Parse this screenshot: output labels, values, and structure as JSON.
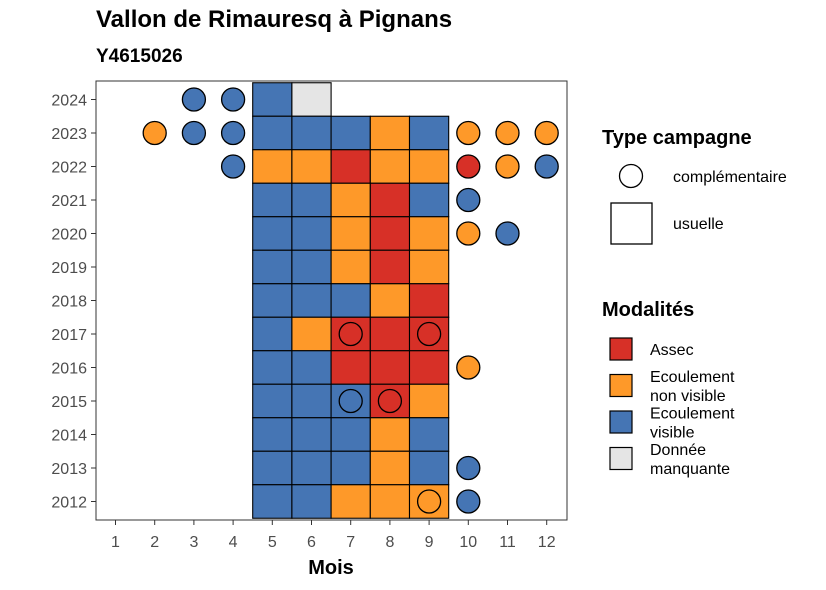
{
  "chart_data": {
    "type": "heatmap",
    "title": "Vallon de Rimauresq à Pignans",
    "subtitle": "Y4615026",
    "xlabel": "Mois",
    "ylabel": "",
    "x_ticks": [
      "1",
      "2",
      "3",
      "4",
      "5",
      "6",
      "7",
      "8",
      "9",
      "10",
      "11",
      "12"
    ],
    "y_ticks": [
      "2012",
      "2013",
      "2014",
      "2015",
      "2016",
      "2017",
      "2018",
      "2019",
      "2020",
      "2021",
      "2022",
      "2023",
      "2024"
    ],
    "colors": {
      "Assec": "#d73027",
      "Ecoulement non visible": "#fe9929",
      "Ecoulement visible": "#4575b4",
      "Donnée manquante": "#e5e5e5"
    },
    "legend_shape": {
      "title": "Type campagne",
      "items": [
        "complémentaire",
        "usuelle"
      ]
    },
    "legend_fill": {
      "title": "Modalités",
      "items": [
        {
          "key": "Assec",
          "lines": [
            "Assec"
          ]
        },
        {
          "key": "Ecoulement non visible",
          "lines": [
            "Ecoulement",
            "non visible"
          ]
        },
        {
          "key": "Ecoulement visible",
          "lines": [
            "Ecoulement",
            "visible"
          ]
        },
        {
          "key": "Donnée manquante",
          "lines": [
            "Donnée",
            "manquante"
          ]
        }
      ]
    },
    "usuelle": [
      {
        "year": 2024,
        "m": 5,
        "v": "Ecoulement visible"
      },
      {
        "year": 2024,
        "m": 6,
        "v": "Donnée manquante"
      },
      {
        "year": 2023,
        "m": 5,
        "v": "Ecoulement visible"
      },
      {
        "year": 2023,
        "m": 6,
        "v": "Ecoulement visible"
      },
      {
        "year": 2023,
        "m": 7,
        "v": "Ecoulement visible"
      },
      {
        "year": 2023,
        "m": 8,
        "v": "Ecoulement non visible"
      },
      {
        "year": 2023,
        "m": 9,
        "v": "Ecoulement visible"
      },
      {
        "year": 2022,
        "m": 5,
        "v": "Ecoulement non visible"
      },
      {
        "year": 2022,
        "m": 6,
        "v": "Ecoulement non visible"
      },
      {
        "year": 2022,
        "m": 7,
        "v": "Assec"
      },
      {
        "year": 2022,
        "m": 8,
        "v": "Ecoulement non visible"
      },
      {
        "year": 2022,
        "m": 9,
        "v": "Ecoulement non visible"
      },
      {
        "year": 2021,
        "m": 5,
        "v": "Ecoulement visible"
      },
      {
        "year": 2021,
        "m": 6,
        "v": "Ecoulement visible"
      },
      {
        "year": 2021,
        "m": 7,
        "v": "Ecoulement non visible"
      },
      {
        "year": 2021,
        "m": 8,
        "v": "Assec"
      },
      {
        "year": 2021,
        "m": 9,
        "v": "Ecoulement visible"
      },
      {
        "year": 2020,
        "m": 5,
        "v": "Ecoulement visible"
      },
      {
        "year": 2020,
        "m": 6,
        "v": "Ecoulement visible"
      },
      {
        "year": 2020,
        "m": 7,
        "v": "Ecoulement non visible"
      },
      {
        "year": 2020,
        "m": 8,
        "v": "Assec"
      },
      {
        "year": 2020,
        "m": 9,
        "v": "Ecoulement non visible"
      },
      {
        "year": 2019,
        "m": 5,
        "v": "Ecoulement visible"
      },
      {
        "year": 2019,
        "m": 6,
        "v": "Ecoulement visible"
      },
      {
        "year": 2019,
        "m": 7,
        "v": "Ecoulement non visible"
      },
      {
        "year": 2019,
        "m": 8,
        "v": "Assec"
      },
      {
        "year": 2019,
        "m": 9,
        "v": "Ecoulement non visible"
      },
      {
        "year": 2018,
        "m": 5,
        "v": "Ecoulement visible"
      },
      {
        "year": 2018,
        "m": 6,
        "v": "Ecoulement visible"
      },
      {
        "year": 2018,
        "m": 7,
        "v": "Ecoulement visible"
      },
      {
        "year": 2018,
        "m": 8,
        "v": "Ecoulement non visible"
      },
      {
        "year": 2018,
        "m": 9,
        "v": "Assec"
      },
      {
        "year": 2017,
        "m": 5,
        "v": "Ecoulement visible"
      },
      {
        "year": 2017,
        "m": 6,
        "v": "Ecoulement non visible"
      },
      {
        "year": 2017,
        "m": 7,
        "v": "Assec"
      },
      {
        "year": 2017,
        "m": 8,
        "v": "Assec"
      },
      {
        "year": 2017,
        "m": 9,
        "v": "Assec"
      },
      {
        "year": 2016,
        "m": 5,
        "v": "Ecoulement visible"
      },
      {
        "year": 2016,
        "m": 6,
        "v": "Ecoulement visible"
      },
      {
        "year": 2016,
        "m": 7,
        "v": "Assec"
      },
      {
        "year": 2016,
        "m": 8,
        "v": "Assec"
      },
      {
        "year": 2016,
        "m": 9,
        "v": "Assec"
      },
      {
        "year": 2015,
        "m": 5,
        "v": "Ecoulement visible"
      },
      {
        "year": 2015,
        "m": 6,
        "v": "Ecoulement visible"
      },
      {
        "year": 2015,
        "m": 7,
        "v": "Ecoulement visible"
      },
      {
        "year": 2015,
        "m": 8,
        "v": "Assec"
      },
      {
        "year": 2015,
        "m": 9,
        "v": "Ecoulement non visible"
      },
      {
        "year": 2014,
        "m": 5,
        "v": "Ecoulement visible"
      },
      {
        "year": 2014,
        "m": 6,
        "v": "Ecoulement visible"
      },
      {
        "year": 2014,
        "m": 7,
        "v": "Ecoulement visible"
      },
      {
        "year": 2014,
        "m": 8,
        "v": "Ecoulement non visible"
      },
      {
        "year": 2014,
        "m": 9,
        "v": "Ecoulement visible"
      },
      {
        "year": 2013,
        "m": 5,
        "v": "Ecoulement visible"
      },
      {
        "year": 2013,
        "m": 6,
        "v": "Ecoulement visible"
      },
      {
        "year": 2013,
        "m": 7,
        "v": "Ecoulement visible"
      },
      {
        "year": 2013,
        "m": 8,
        "v": "Ecoulement non visible"
      },
      {
        "year": 2013,
        "m": 9,
        "v": "Ecoulement visible"
      },
      {
        "year": 2012,
        "m": 5,
        "v": "Ecoulement visible"
      },
      {
        "year": 2012,
        "m": 6,
        "v": "Ecoulement visible"
      },
      {
        "year": 2012,
        "m": 7,
        "v": "Ecoulement non visible"
      },
      {
        "year": 2012,
        "m": 8,
        "v": "Ecoulement non visible"
      },
      {
        "year": 2012,
        "m": 9,
        "v": "Ecoulement non visible"
      }
    ],
    "complementaire": [
      {
        "year": 2024,
        "m": 3,
        "v": "Ecoulement visible"
      },
      {
        "year": 2024,
        "m": 4,
        "v": "Ecoulement visible"
      },
      {
        "year": 2023,
        "m": 2,
        "v": "Ecoulement non visible"
      },
      {
        "year": 2023,
        "m": 3,
        "v": "Ecoulement visible"
      },
      {
        "year": 2023,
        "m": 4,
        "v": "Ecoulement visible"
      },
      {
        "year": 2023,
        "m": 10,
        "v": "Ecoulement non visible"
      },
      {
        "year": 2023,
        "m": 11,
        "v": "Ecoulement non visible"
      },
      {
        "year": 2023,
        "m": 12,
        "v": "Ecoulement non visible"
      },
      {
        "year": 2022,
        "m": 4,
        "v": "Ecoulement visible"
      },
      {
        "year": 2022,
        "m": 10,
        "v": "Assec"
      },
      {
        "year": 2022,
        "m": 11,
        "v": "Ecoulement non visible"
      },
      {
        "year": 2022,
        "m": 12,
        "v": "Ecoulement visible"
      },
      {
        "year": 2021,
        "m": 10,
        "v": "Ecoulement visible"
      },
      {
        "year": 2020,
        "m": 10,
        "v": "Ecoulement non visible"
      },
      {
        "year": 2020,
        "m": 11,
        "v": "Ecoulement visible"
      },
      {
        "year": 2017,
        "m": 7,
        "v": "Assec"
      },
      {
        "year": 2017,
        "m": 9,
        "v": "Assec"
      },
      {
        "year": 2016,
        "m": 10,
        "v": "Ecoulement non visible"
      },
      {
        "year": 2015,
        "m": 7,
        "v": "Ecoulement visible"
      },
      {
        "year": 2015,
        "m": 8,
        "v": "Assec"
      },
      {
        "year": 2013,
        "m": 10,
        "v": "Ecoulement visible"
      },
      {
        "year": 2012,
        "m": 9,
        "v": "Ecoulement non visible"
      },
      {
        "year": 2012,
        "m": 10,
        "v": "Ecoulement visible"
      }
    ]
  }
}
